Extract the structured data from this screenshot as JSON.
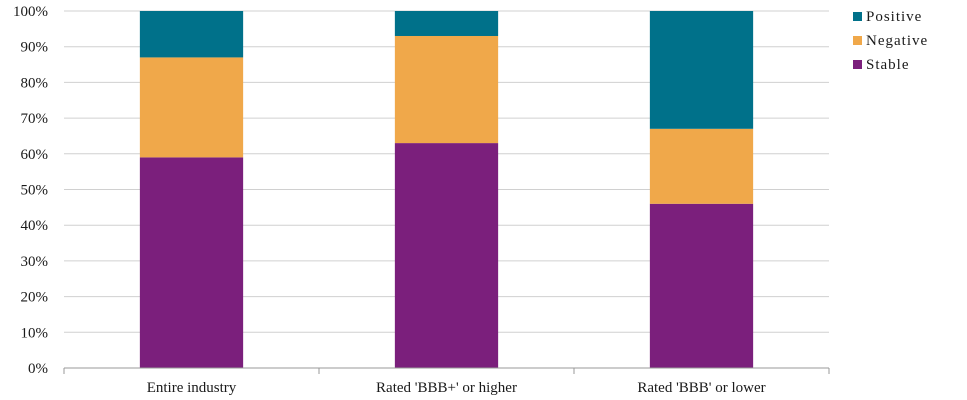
{
  "chart_data": {
    "type": "bar",
    "stacked": true,
    "categories": [
      "Entire industry",
      "Rated 'BBB+' or higher",
      "Rated 'BBB' or lower"
    ],
    "series": [
      {
        "name": "Stable",
        "values": [
          59,
          63,
          46
        ],
        "color": "#7b1f7c"
      },
      {
        "name": "Negative",
        "values": [
          28,
          30,
          21
        ],
        "color": "#f0a84a"
      },
      {
        "name": "Positive",
        "values": [
          13,
          7,
          33
        ],
        "color": "#00718a"
      }
    ],
    "ylim": [
      0,
      100
    ],
    "yticks": [
      "0%",
      "10%",
      "20%",
      "30%",
      "40%",
      "50%",
      "60%",
      "70%",
      "80%",
      "90%",
      "100%"
    ],
    "grid": true,
    "legend_position": "top-right",
    "legend_order": [
      "Positive",
      "Negative",
      "Stable"
    ],
    "title": "",
    "xlabel": "",
    "ylabel": ""
  }
}
